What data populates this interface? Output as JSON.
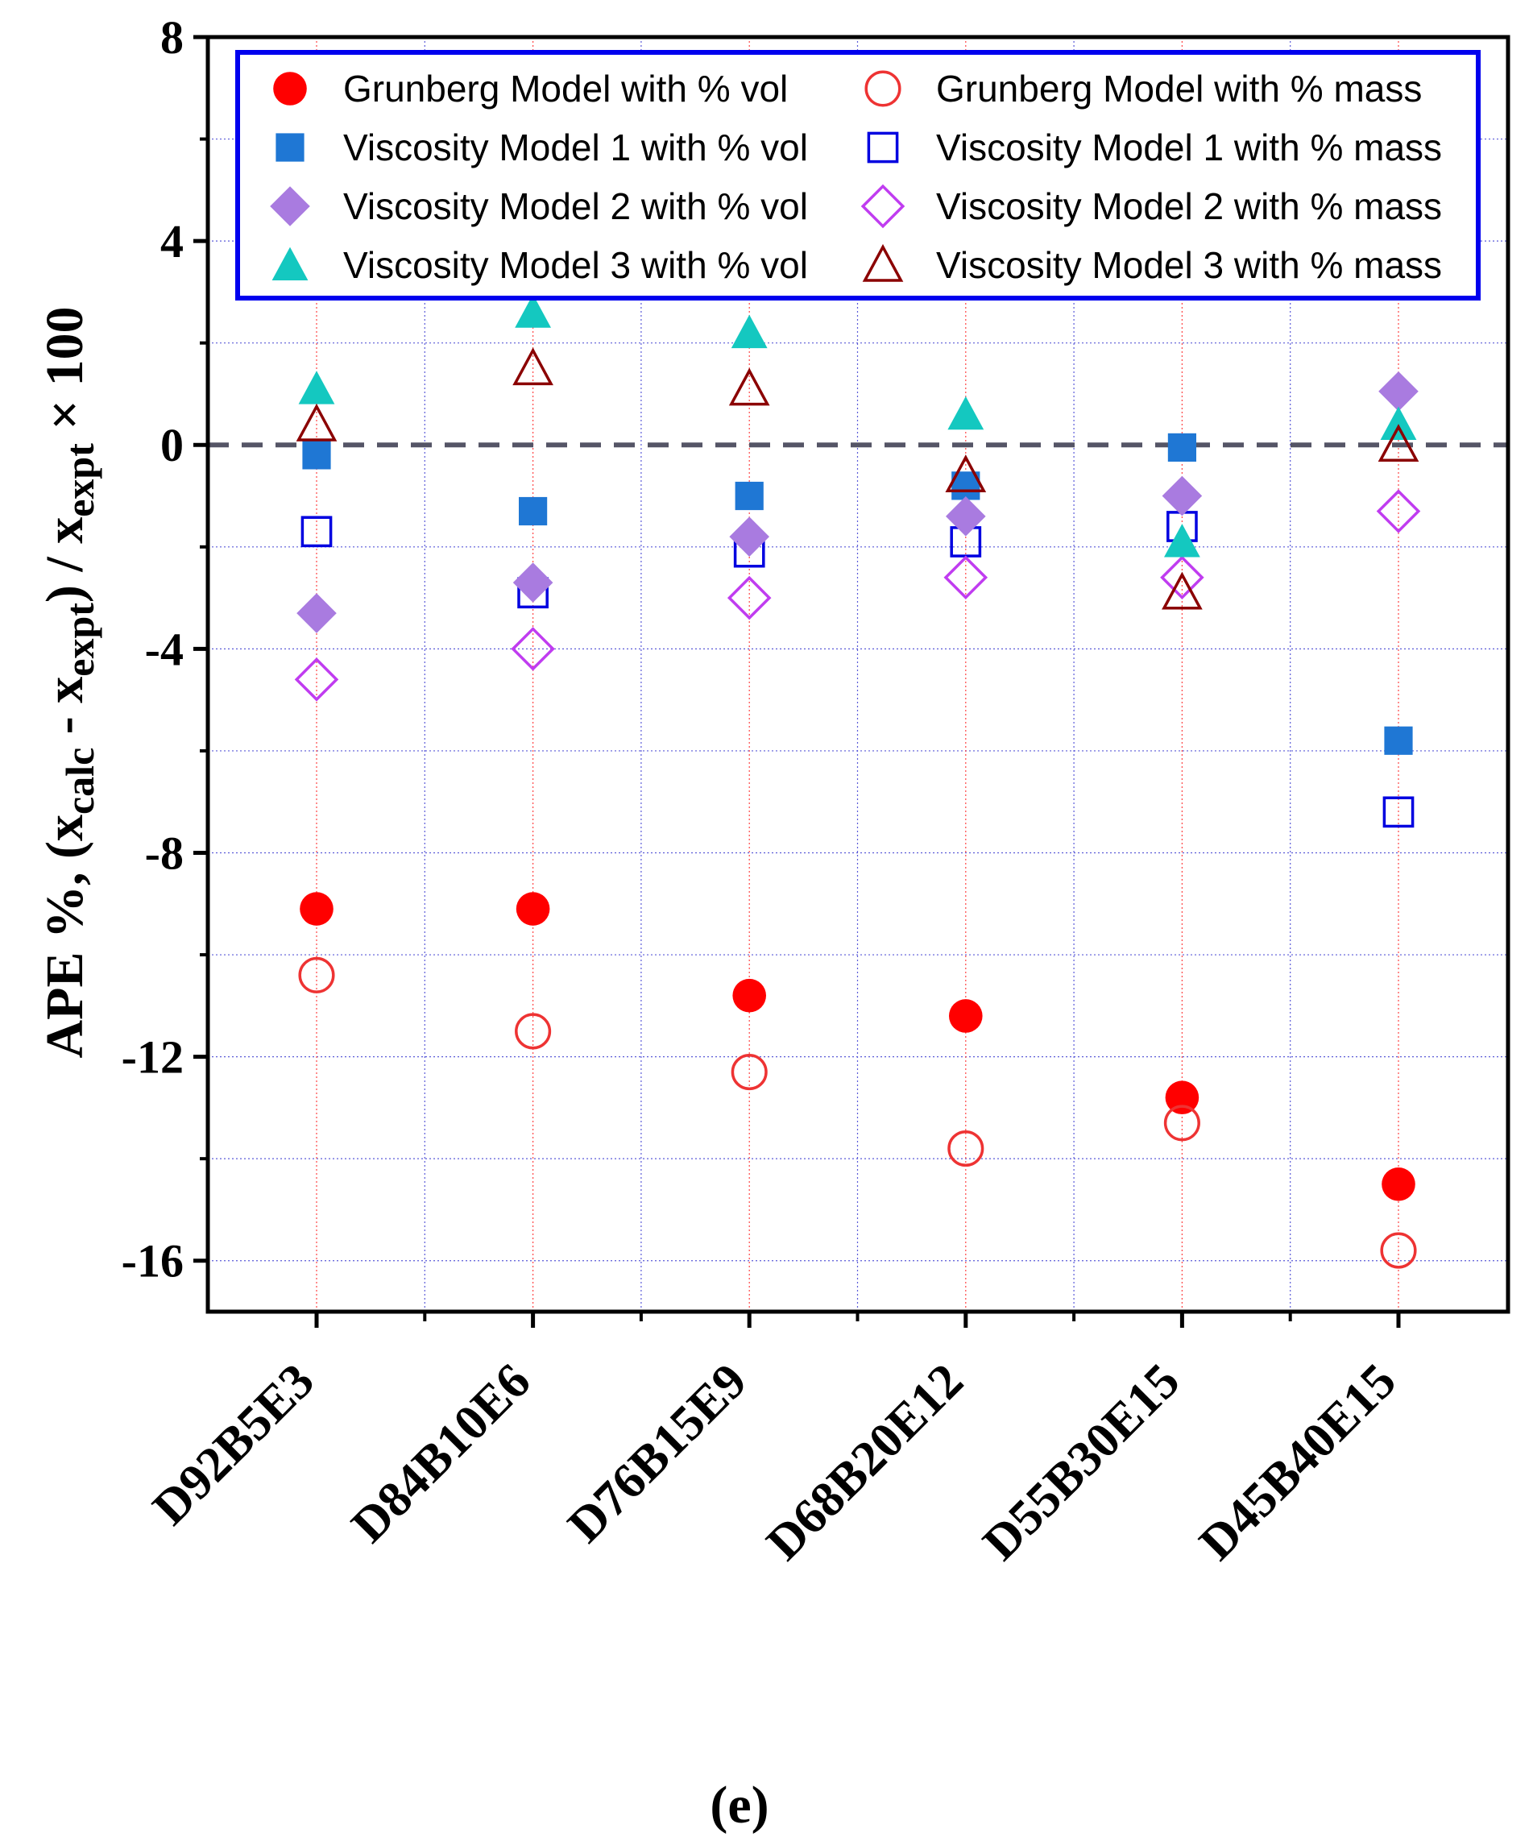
{
  "chart_data": {
    "type": "scatter",
    "categories": [
      "D92B5E3",
      "D84B10E6",
      "D76B15E9",
      "D68B20E12",
      "D55B30E15",
      "D45B40E15"
    ],
    "ylabel": {
      "prefix": "APE %, (x",
      "calc_sub": "calc",
      "middle": " - x",
      "expt_sub": "expt",
      "after": ") / x",
      "expt_sub2": "expt",
      "suffix": " × 100"
    },
    "ylim": [
      -17,
      8
    ],
    "yticks": [
      8,
      4,
      0,
      -4,
      -8,
      -12,
      -16
    ],
    "ytick_labels": [
      "8",
      "4",
      "0",
      "-4",
      "-8",
      "-12",
      "-16"
    ],
    "reference_line": 0,
    "grid": true,
    "legend_position": "top",
    "panel_label": "(e)",
    "series": [
      {
        "name": "Grunberg Model with % vol",
        "marker": "circle",
        "filled": true,
        "color": "#ff0000",
        "values": [
          -9.1,
          -9.1,
          -10.8,
          -11.2,
          -12.8,
          -14.5
        ]
      },
      {
        "name": "Grunberg Model with % mass",
        "marker": "circle",
        "filled": false,
        "color": "#ee3333",
        "values": [
          -10.4,
          -11.5,
          -12.3,
          -13.8,
          -13.3,
          -15.8
        ]
      },
      {
        "name": "Viscosity Model 1 with % vol",
        "marker": "square",
        "filled": true,
        "color": "#1f77d4",
        "values": [
          -0.2,
          -1.3,
          -1.0,
          -0.8,
          -0.05,
          -5.8
        ]
      },
      {
        "name": "Viscosity Model 1 with % mass",
        "marker": "square",
        "filled": false,
        "color": "#0000e0",
        "values": [
          -1.7,
          -2.9,
          -2.1,
          -1.9,
          -1.6,
          -7.2
        ]
      },
      {
        "name": "Viscosity Model 2 with % vol",
        "marker": "diamond",
        "filled": true,
        "color": "#a97be0",
        "values": [
          -3.3,
          -2.7,
          -1.8,
          -1.4,
          -1.0,
          1.05
        ]
      },
      {
        "name": "Viscosity Model 2 with % mass",
        "marker": "diamond",
        "filled": false,
        "color": "#c03cf0",
        "values": [
          -4.6,
          -4.0,
          -3.0,
          -2.6,
          -2.6,
          -1.3
        ]
      },
      {
        "name": "Viscosity Model 3 with % vol",
        "marker": "triangle",
        "filled": true,
        "color": "#14c8c0",
        "values": [
          1.1,
          2.6,
          2.2,
          0.6,
          -1.9,
          0.4
        ]
      },
      {
        "name": "Viscosity Model 3 with % mass",
        "marker": "triangle",
        "filled": false,
        "color": "#8b0000",
        "values": [
          0.4,
          1.5,
          1.1,
          -0.6,
          -2.9,
          0.0
        ]
      }
    ]
  }
}
